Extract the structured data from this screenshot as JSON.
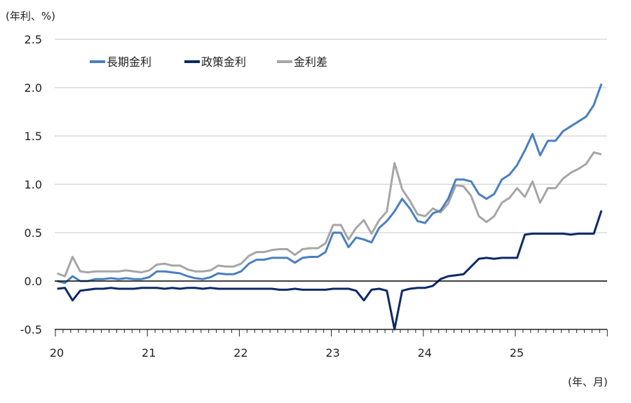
{
  "chart_data": {
    "type": "line",
    "ylabel": "(年利、%)",
    "xlabel": "(年、月)",
    "ylim": [
      -0.5,
      2.5
    ],
    "yticks": [
      "2.5",
      "2.0",
      "1.5",
      "1.0",
      "0.5",
      "0.0",
      "-0.5"
    ],
    "ytick_values": [
      2.5,
      2.0,
      1.5,
      1.0,
      0.5,
      0.0,
      -0.5
    ],
    "xticks": [
      "20",
      "21",
      "22",
      "23",
      "24",
      "25"
    ],
    "xtick_values": [
      20,
      21,
      22,
      23,
      24,
      25
    ],
    "xlim": [
      20,
      26
    ],
    "grid": true,
    "legend_position": "top-left",
    "x_start": 20.0,
    "x_step_months": 1,
    "series": [
      {
        "name": "長期金利",
        "color": "#4a7fc1",
        "values": [
          0.0,
          -0.02,
          0.05,
          0.0,
          0.0,
          0.02,
          0.02,
          0.03,
          0.02,
          0.03,
          0.02,
          0.02,
          0.04,
          0.1,
          0.1,
          0.09,
          0.08,
          0.05,
          0.03,
          0.02,
          0.04,
          0.08,
          0.07,
          0.07,
          0.1,
          0.18,
          0.22,
          0.22,
          0.24,
          0.24,
          0.24,
          0.19,
          0.24,
          0.25,
          0.25,
          0.3,
          0.5,
          0.5,
          0.35,
          0.45,
          0.43,
          0.4,
          0.55,
          0.62,
          0.72,
          0.85,
          0.75,
          0.62,
          0.6,
          0.7,
          0.73,
          0.85,
          1.05,
          1.05,
          1.03,
          0.9,
          0.85,
          0.9,
          1.05,
          1.1,
          1.2,
          1.35,
          1.52,
          1.3,
          1.45,
          1.45,
          1.55,
          1.6,
          1.65,
          1.7,
          1.82,
          2.04
        ]
      },
      {
        "name": "政策金利",
        "color": "#0d2a66",
        "values": [
          -0.08,
          -0.07,
          -0.2,
          -0.1,
          -0.09,
          -0.08,
          -0.08,
          -0.07,
          -0.08,
          -0.08,
          -0.08,
          -0.07,
          -0.07,
          -0.07,
          -0.08,
          -0.07,
          -0.08,
          -0.07,
          -0.07,
          -0.08,
          -0.07,
          -0.08,
          -0.08,
          -0.08,
          -0.08,
          -0.08,
          -0.08,
          -0.08,
          -0.08,
          -0.09,
          -0.09,
          -0.08,
          -0.09,
          -0.09,
          -0.09,
          -0.09,
          -0.08,
          -0.08,
          -0.08,
          -0.1,
          -0.2,
          -0.09,
          -0.08,
          -0.1,
          -0.5,
          -0.1,
          -0.08,
          -0.07,
          -0.07,
          -0.05,
          0.02,
          0.05,
          0.06,
          0.07,
          0.15,
          0.23,
          0.24,
          0.23,
          0.24,
          0.24,
          0.24,
          0.48,
          0.49,
          0.49,
          0.49,
          0.49,
          0.49,
          0.48,
          0.49,
          0.49,
          0.49,
          0.73
        ]
      },
      {
        "name": "金利差",
        "color": "#a6a6a6",
        "values": [
          0.08,
          0.05,
          0.25,
          0.1,
          0.09,
          0.1,
          0.1,
          0.1,
          0.1,
          0.11,
          0.1,
          0.09,
          0.11,
          0.17,
          0.18,
          0.16,
          0.16,
          0.12,
          0.1,
          0.1,
          0.11,
          0.16,
          0.15,
          0.15,
          0.18,
          0.26,
          0.3,
          0.3,
          0.32,
          0.33,
          0.33,
          0.27,
          0.33,
          0.34,
          0.34,
          0.39,
          0.58,
          0.58,
          0.43,
          0.55,
          0.63,
          0.49,
          0.63,
          0.72,
          1.22,
          0.95,
          0.83,
          0.69,
          0.67,
          0.75,
          0.71,
          0.8,
          0.99,
          0.98,
          0.88,
          0.67,
          0.61,
          0.67,
          0.81,
          0.86,
          0.96,
          0.87,
          1.03,
          0.81,
          0.96,
          0.96,
          1.06,
          1.12,
          1.16,
          1.21,
          1.33,
          1.31
        ]
      }
    ]
  }
}
